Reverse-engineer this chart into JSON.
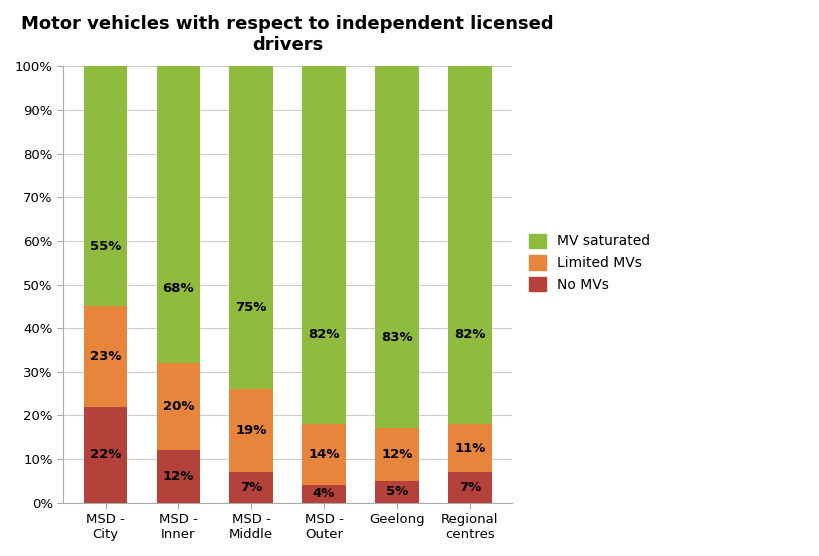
{
  "title": "Motor vehicles with respect to independent licensed\ndrivers",
  "categories": [
    "MSD -\nCity",
    "MSD -\nInner",
    "MSD -\nMiddle",
    "MSD -\nOuter",
    "Geelong",
    "Regional\ncentres"
  ],
  "no_mvs": [
    22,
    12,
    7,
    4,
    5,
    7
  ],
  "limited_mvs": [
    23,
    20,
    19,
    14,
    12,
    11
  ],
  "mv_saturated": [
    55,
    68,
    75,
    82,
    83,
    82
  ],
  "color_no_mvs": "#b5413b",
  "color_limited": "#e8853d",
  "color_saturated": "#8fbc3f",
  "ylim": [
    0,
    100
  ],
  "yticks": [
    0,
    10,
    20,
    30,
    40,
    50,
    60,
    70,
    80,
    90,
    100
  ],
  "ytick_labels": [
    "0%",
    "10%",
    "20%",
    "30%",
    "40%",
    "50%",
    "60%",
    "70%",
    "80%",
    "90%",
    "100%"
  ],
  "title_fontsize": 13,
  "label_fontsize": 9.5,
  "tick_fontsize": 9.5,
  "legend_fontsize": 10,
  "bar_width": 0.6
}
